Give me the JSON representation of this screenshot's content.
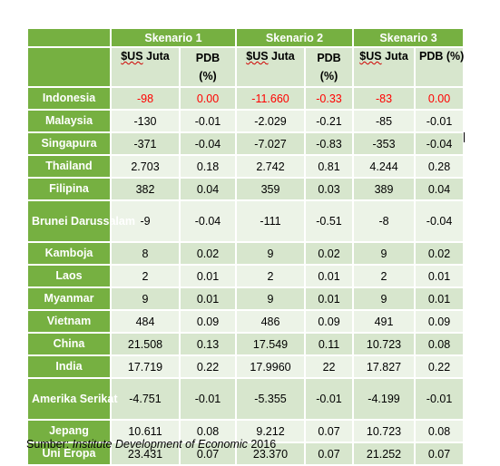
{
  "table": {
    "scenarios": [
      "Skenario 1",
      "Skenario 2",
      "Skenario 3"
    ],
    "subheaders": {
      "usd_prefix": "$US",
      "usd_suffix": " Juta",
      "pdb_two_line_1": "PDB",
      "pdb_two_line_2": "(%)",
      "pdb_single": "PDB (%)"
    },
    "rows": [
      {
        "country": "Indonesia",
        "s1_usd": "-98",
        "s1_pdb": "0.00",
        "s2_usd": "-11.660",
        "s2_pdb": "-0.33",
        "s3_usd": "-83",
        "s3_pdb": "0.00",
        "highlight": true
      },
      {
        "country": "Malaysia",
        "s1_usd": "-130",
        "s1_pdb": "-0.01",
        "s2_usd": "-2.029",
        "s2_pdb": "-0.21",
        "s3_usd": "-85",
        "s3_pdb": "-0.01"
      },
      {
        "country": "Singapura",
        "s1_usd": "-371",
        "s1_pdb": "-0.04",
        "s2_usd": "-7.027",
        "s2_pdb": "-0.83",
        "s3_usd": "-353",
        "s3_pdb": "-0.04"
      },
      {
        "country": "Thailand",
        "s1_usd": "2.703",
        "s1_pdb": "0.18",
        "s2_usd": "2.742",
        "s2_pdb": "0.81",
        "s3_usd": "4.244",
        "s3_pdb": "0.28"
      },
      {
        "country": "Filipina",
        "s1_usd": "382",
        "s1_pdb": "0.04",
        "s2_usd": "359",
        "s2_pdb": "0.03",
        "s3_usd": "389",
        "s3_pdb": "0.04"
      },
      {
        "country": "Brunei Darussalam",
        "s1_usd": "-9",
        "s1_pdb": "-0.04",
        "s2_usd": "-111",
        "s2_pdb": "-0.51",
        "s3_usd": "-8",
        "s3_pdb": "-0.04"
      },
      {
        "country": "Kamboja",
        "s1_usd": "8",
        "s1_pdb": "0.02",
        "s2_usd": "9",
        "s2_pdb": "0.02",
        "s3_usd": "9",
        "s3_pdb": "0.02"
      },
      {
        "country": "Laos",
        "s1_usd": "2",
        "s1_pdb": "0.01",
        "s2_usd": "2",
        "s2_pdb": "0.01",
        "s3_usd": "2",
        "s3_pdb": "0.01"
      },
      {
        "country": "Myanmar",
        "s1_usd": "9",
        "s1_pdb": "0.01",
        "s2_usd": "9",
        "s2_pdb": "0.01",
        "s3_usd": "9",
        "s3_pdb": "0.01"
      },
      {
        "country": "Vietnam",
        "s1_usd": "484",
        "s1_pdb": "0.09",
        "s2_usd": "486",
        "s2_pdb": "0.09",
        "s3_usd": "491",
        "s3_pdb": "0.09"
      },
      {
        "country": "China",
        "s1_usd": "21.508",
        "s1_pdb": "0.13",
        "s2_usd": "17.549",
        "s2_pdb": "0.11",
        "s3_usd": "10.723",
        "s3_pdb": "0.08"
      },
      {
        "country": "India",
        "s1_usd": "17.719",
        "s1_pdb": "0.22",
        "s2_usd": "17.9960",
        "s2_pdb": "22",
        "s3_usd": "17.827",
        "s3_pdb": "0.22"
      },
      {
        "country": "Amerika Serikat",
        "s1_usd": "-4.751",
        "s1_pdb": "-0.01",
        "s2_usd": "-5.355",
        "s2_pdb": "-0.01",
        "s3_usd": "-4.199",
        "s3_pdb": "-0.01"
      },
      {
        "country": "Jepang",
        "s1_usd": "10.611",
        "s1_pdb": "0.08",
        "s2_usd": "9.212",
        "s2_pdb": "0.07",
        "s3_usd": "10.723",
        "s3_pdb": "0.08"
      },
      {
        "country": "Uni Eropa",
        "s1_usd": "23.431",
        "s1_pdb": "0.07",
        "s2_usd": "23.370",
        "s2_pdb": "0.07",
        "s3_usd": "21.252",
        "s3_pdb": "0.07"
      }
    ]
  },
  "source": {
    "prefix": "Sumber: ",
    "institution": "Institute Development of Economic",
    "year": " 2016"
  },
  "colors": {
    "header_green": "#76b041",
    "odd_row": "#d7e6cd",
    "even_row": "#ecf3e7",
    "highlight_red": "#ff0000"
  }
}
